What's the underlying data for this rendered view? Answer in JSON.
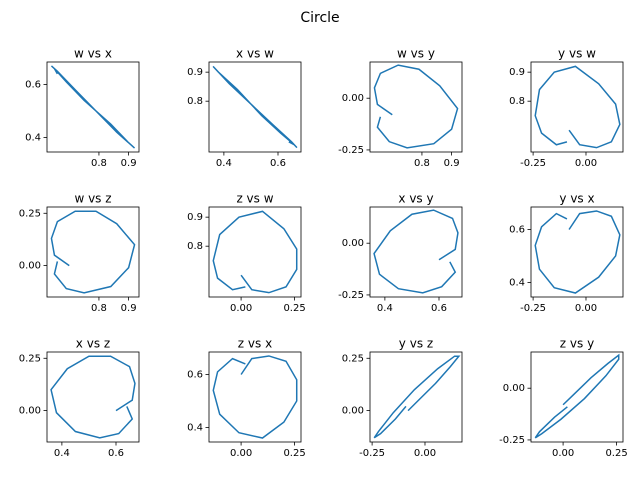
{
  "title": "Circle",
  "chart_data": [
    {
      "type": "line",
      "title": "w vs x",
      "color": "#1f77b4",
      "x": [
        0.7,
        0.65,
        0.64,
        0.66,
        0.72,
        0.79,
        0.86,
        0.92,
        0.9,
        0.84,
        0.75,
        0.69,
        0.65,
        0.66
      ],
      "values": [
        0.6,
        0.66,
        0.67,
        0.65,
        0.58,
        0.5,
        0.42,
        0.36,
        0.38,
        0.45,
        0.54,
        0.61,
        0.66,
        0.64
      ],
      "xlim": [
        0.625,
        0.935
      ],
      "ylim": [
        0.345,
        0.685
      ],
      "xticks": [
        0.8,
        0.9
      ],
      "yticks": [
        0.4,
        0.6
      ]
    },
    {
      "type": "line",
      "title": "x vs w",
      "color": "#1f77b4",
      "x": [
        0.6,
        0.66,
        0.67,
        0.65,
        0.58,
        0.5,
        0.42,
        0.36,
        0.38,
        0.45,
        0.54,
        0.61,
        0.66,
        0.64
      ],
      "values": [
        0.7,
        0.65,
        0.64,
        0.66,
        0.72,
        0.79,
        0.86,
        0.92,
        0.9,
        0.84,
        0.75,
        0.69,
        0.65,
        0.66
      ],
      "xlim": [
        0.345,
        0.685
      ],
      "ylim": [
        0.625,
        0.935
      ],
      "xticks": [
        0.4,
        0.6
      ],
      "yticks": [
        0.8,
        0.9
      ]
    },
    {
      "type": "line",
      "title": "w vs y",
      "color": "#1f77b4",
      "x": [
        0.7,
        0.65,
        0.64,
        0.66,
        0.72,
        0.79,
        0.86,
        0.92,
        0.9,
        0.84,
        0.75,
        0.69,
        0.65,
        0.66
      ],
      "values": [
        -0.08,
        -0.03,
        0.05,
        0.12,
        0.16,
        0.14,
        0.06,
        -0.05,
        -0.15,
        -0.22,
        -0.24,
        -0.21,
        -0.14,
        -0.09
      ],
      "xlim": [
        0.625,
        0.935
      ],
      "ylim": [
        -0.26,
        0.175
      ],
      "xticks": [
        0.8,
        0.9
      ],
      "yticks": [
        -0.25,
        {
          "value": 0,
          "label": "0.00"
        }
      ]
    },
    {
      "type": "line",
      "title": "y vs w",
      "color": "#1f77b4",
      "x": [
        -0.08,
        -0.03,
        0.05,
        0.12,
        0.16,
        0.14,
        0.06,
        -0.05,
        -0.15,
        -0.22,
        -0.24,
        -0.21,
        -0.14,
        -0.09
      ],
      "values": [
        0.7,
        0.65,
        0.64,
        0.66,
        0.72,
        0.79,
        0.86,
        0.92,
        0.9,
        0.84,
        0.75,
        0.69,
        0.65,
        0.66
      ],
      "xlim": [
        -0.26,
        0.175
      ],
      "ylim": [
        0.625,
        0.935
      ],
      "xticks": [
        -0.25,
        {
          "value": 0,
          "label": "0.00"
        }
      ],
      "yticks": [
        0.8,
        0.9
      ]
    },
    {
      "type": "line",
      "title": "w vs z",
      "color": "#1f77b4",
      "x": [
        0.7,
        0.65,
        0.64,
        0.66,
        0.72,
        0.79,
        0.86,
        0.92,
        0.9,
        0.84,
        0.75,
        0.69,
        0.65,
        0.66
      ],
      "values": [
        0.0,
        0.05,
        0.13,
        0.21,
        0.26,
        0.26,
        0.2,
        0.1,
        -0.01,
        -0.1,
        -0.13,
        -0.11,
        -0.04,
        0.02
      ],
      "xlim": [
        0.625,
        0.935
      ],
      "ylim": [
        -0.15,
        0.28
      ],
      "xticks": [
        0.8,
        0.9
      ],
      "yticks": [
        {
          "value": 0,
          "label": "0.00"
        },
        0.25
      ]
    },
    {
      "type": "line",
      "title": "z vs w",
      "color": "#1f77b4",
      "x": [
        0.0,
        0.05,
        0.13,
        0.21,
        0.26,
        0.26,
        0.2,
        0.1,
        -0.01,
        -0.1,
        -0.13,
        -0.11,
        -0.04,
        0.02
      ],
      "values": [
        0.7,
        0.65,
        0.64,
        0.66,
        0.72,
        0.79,
        0.86,
        0.92,
        0.9,
        0.84,
        0.75,
        0.69,
        0.65,
        0.66
      ],
      "xlim": [
        -0.15,
        0.28
      ],
      "ylim": [
        0.625,
        0.935
      ],
      "xticks": [
        {
          "value": 0,
          "label": "0.00"
        },
        0.25
      ],
      "yticks": [
        0.8,
        0.9
      ]
    },
    {
      "type": "line",
      "title": "x vs y",
      "color": "#1f77b4",
      "x": [
        0.6,
        0.66,
        0.67,
        0.65,
        0.58,
        0.5,
        0.42,
        0.36,
        0.38,
        0.45,
        0.54,
        0.61,
        0.66,
        0.64
      ],
      "values": [
        -0.08,
        -0.03,
        0.05,
        0.12,
        0.16,
        0.14,
        0.06,
        -0.05,
        -0.15,
        -0.22,
        -0.24,
        -0.21,
        -0.14,
        -0.09
      ],
      "xlim": [
        0.345,
        0.685
      ],
      "ylim": [
        -0.26,
        0.175
      ],
      "xticks": [
        0.4,
        0.6
      ],
      "yticks": [
        -0.25,
        {
          "value": 0,
          "label": "0.00"
        }
      ]
    },
    {
      "type": "line",
      "title": "y vs x",
      "color": "#1f77b4",
      "x": [
        -0.08,
        -0.03,
        0.05,
        0.12,
        0.16,
        0.14,
        0.06,
        -0.05,
        -0.15,
        -0.22,
        -0.24,
        -0.21,
        -0.14,
        -0.09
      ],
      "values": [
        0.6,
        0.66,
        0.67,
        0.65,
        0.58,
        0.5,
        0.42,
        0.36,
        0.38,
        0.45,
        0.54,
        0.61,
        0.66,
        0.64
      ],
      "xlim": [
        -0.26,
        0.175
      ],
      "ylim": [
        0.345,
        0.685
      ],
      "xticks": [
        -0.25,
        {
          "value": 0,
          "label": "0.00"
        }
      ],
      "yticks": [
        0.4,
        0.6
      ]
    },
    {
      "type": "line",
      "title": "x vs z",
      "color": "#1f77b4",
      "x": [
        0.6,
        0.66,
        0.67,
        0.65,
        0.58,
        0.5,
        0.42,
        0.36,
        0.38,
        0.45,
        0.54,
        0.61,
        0.66,
        0.64
      ],
      "values": [
        0.0,
        0.05,
        0.13,
        0.21,
        0.26,
        0.26,
        0.2,
        0.1,
        -0.01,
        -0.1,
        -0.13,
        -0.11,
        -0.04,
        0.02
      ],
      "xlim": [
        0.345,
        0.685
      ],
      "ylim": [
        -0.15,
        0.28
      ],
      "xticks": [
        0.4,
        0.6
      ],
      "yticks": [
        {
          "value": 0,
          "label": "0.00"
        },
        0.25
      ]
    },
    {
      "type": "line",
      "title": "z vs x",
      "color": "#1f77b4",
      "x": [
        0.0,
        0.05,
        0.13,
        0.21,
        0.26,
        0.26,
        0.2,
        0.1,
        -0.01,
        -0.1,
        -0.13,
        -0.11,
        -0.04,
        0.02
      ],
      "values": [
        0.6,
        0.66,
        0.67,
        0.65,
        0.58,
        0.5,
        0.42,
        0.36,
        0.38,
        0.45,
        0.54,
        0.61,
        0.66,
        0.64
      ],
      "xlim": [
        -0.15,
        0.28
      ],
      "ylim": [
        0.345,
        0.685
      ],
      "xticks": [
        {
          "value": 0,
          "label": "0.00"
        },
        0.25
      ],
      "yticks": [
        0.4,
        0.6
      ]
    },
    {
      "type": "line",
      "title": "y vs z",
      "color": "#1f77b4",
      "x": [
        -0.08,
        -0.03,
        0.05,
        0.12,
        0.16,
        0.14,
        0.06,
        -0.05,
        -0.15,
        -0.22,
        -0.24,
        -0.21,
        -0.14,
        -0.09
      ],
      "values": [
        0.0,
        0.05,
        0.13,
        0.21,
        0.26,
        0.26,
        0.2,
        0.1,
        -0.01,
        -0.1,
        -0.13,
        -0.11,
        -0.04,
        0.02
      ],
      "xlim": [
        -0.26,
        0.175
      ],
      "ylim": [
        -0.15,
        0.28
      ],
      "xticks": [
        -0.25,
        {
          "value": 0,
          "label": "0.00"
        }
      ],
      "yticks": [
        {
          "value": 0,
          "label": "0.00"
        },
        0.25
      ]
    },
    {
      "type": "line",
      "title": "z vs y",
      "color": "#1f77b4",
      "x": [
        0.0,
        0.05,
        0.13,
        0.21,
        0.26,
        0.26,
        0.2,
        0.1,
        -0.01,
        -0.1,
        -0.13,
        -0.11,
        -0.04,
        0.02
      ],
      "values": [
        -0.08,
        -0.03,
        0.05,
        0.12,
        0.16,
        0.14,
        0.06,
        -0.05,
        -0.15,
        -0.22,
        -0.24,
        -0.21,
        -0.14,
        -0.09
      ],
      "xlim": [
        -0.15,
        0.28
      ],
      "ylim": [
        -0.26,
        0.175
      ],
      "xticks": [
        {
          "value": 0,
          "label": "0.00"
        },
        0.25
      ],
      "yticks": [
        -0.25,
        {
          "value": 0,
          "label": "0.00"
        }
      ]
    }
  ]
}
